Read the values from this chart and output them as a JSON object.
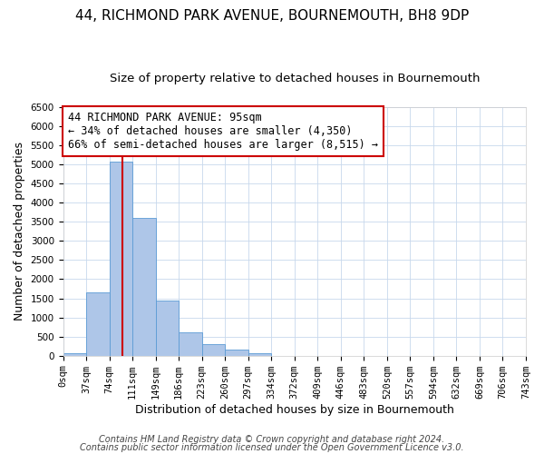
{
  "title": "44, RICHMOND PARK AVENUE, BOURNEMOUTH, BH8 9DP",
  "subtitle": "Size of property relative to detached houses in Bournemouth",
  "xlabel": "Distribution of detached houses by size in Bournemouth",
  "ylabel": "Number of detached properties",
  "bin_labels": [
    "0sqm",
    "37sqm",
    "74sqm",
    "111sqm",
    "149sqm",
    "186sqm",
    "223sqm",
    "260sqm",
    "297sqm",
    "334sqm",
    "372sqm",
    "409sqm",
    "446sqm",
    "483sqm",
    "520sqm",
    "557sqm",
    "594sqm",
    "632sqm",
    "669sqm",
    "706sqm",
    "743sqm"
  ],
  "bar_values": [
    60,
    1650,
    5080,
    3600,
    1430,
    610,
    305,
    150,
    60,
    0,
    0,
    0,
    0,
    0,
    0,
    0,
    0,
    0,
    0,
    0
  ],
  "bar_color": "#aec6e8",
  "bar_edge_color": "#5b9bd5",
  "ylim": [
    0,
    6500
  ],
  "annotation_line1": "44 RICHMOND PARK AVENUE: 95sqm",
  "annotation_line2": "← 34% of detached houses are smaller (4,350)",
  "annotation_line3": "66% of semi-detached houses are larger (8,515) →",
  "annotation_box_color": "#ffffff",
  "annotation_box_edge_color": "#cc0000",
  "footnote1": "Contains HM Land Registry data © Crown copyright and database right 2024.",
  "footnote2": "Contains public sector information licensed under the Open Government Licence v3.0.",
  "red_line_color": "#cc0000",
  "title_fontsize": 11,
  "subtitle_fontsize": 9.5,
  "axis_label_fontsize": 9,
  "tick_fontsize": 7.5,
  "annotation_fontsize": 8.5,
  "footnote_fontsize": 7
}
